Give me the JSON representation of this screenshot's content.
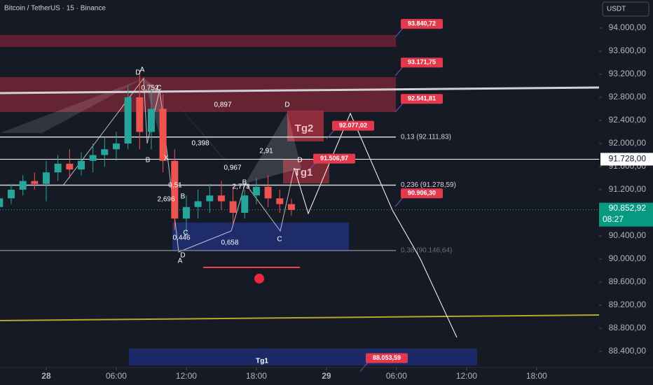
{
  "chart_data": {
    "type": "candlestick",
    "title": "Bitcoin / TetherUS · 15 · Binance",
    "currency": "USDT",
    "up_color": "#26a69a",
    "down_color": "#ef5350",
    "x": [
      -4,
      -3,
      -2,
      -1,
      0,
      1,
      2,
      3,
      4,
      5,
      6,
      7,
      8,
      9,
      10,
      11,
      12,
      13,
      14,
      15,
      16,
      17,
      18,
      19,
      20,
      21
    ],
    "open": [
      90900,
      91050,
      91200,
      91350,
      91300,
      91500,
      91650,
      91550,
      91700,
      91800,
      91900,
      92000,
      92800,
      92200,
      92600,
      91700,
      90700,
      90900,
      91000,
      91100,
      91000,
      90800,
      91100,
      91250,
      91050,
      90950
    ],
    "high": [
      91150,
      91300,
      91450,
      91500,
      91700,
      91800,
      91900,
      91850,
      92000,
      92100,
      92200,
      93000,
      93250,
      92950,
      92850,
      91900,
      91100,
      91200,
      91300,
      91350,
      91250,
      91200,
      91400,
      91450,
      91200,
      91050
    ],
    "low": [
      90800,
      90950,
      91100,
      91200,
      91000,
      91350,
      91400,
      91450,
      91500,
      91600,
      91700,
      91900,
      91900,
      91900,
      91500,
      90500,
      90400,
      90700,
      90800,
      90850,
      90600,
      90700,
      90950,
      90900,
      90800,
      90750
    ],
    "close": [
      91050,
      91200,
      91350,
      91300,
      91500,
      91650,
      91550,
      91700,
      91800,
      91900,
      92000,
      92800,
      92200,
      92600,
      91700,
      90700,
      90900,
      91000,
      91100,
      91000,
      90800,
      91100,
      91250,
      91050,
      90950,
      90850
    ],
    "xlim": [
      -3.96,
      47.35
    ],
    "ylim": [
      87818,
      94485
    ],
    "xticks": [
      {
        "value": 0,
        "label": "28"
      },
      {
        "value": 6,
        "label": "06:00"
      },
      {
        "value": 12,
        "label": "12:00"
      },
      {
        "value": 18,
        "label": "18:00"
      },
      {
        "value": 24,
        "label": "29"
      },
      {
        "value": 30,
        "label": "06:00"
      },
      {
        "value": 36,
        "label": "12:00"
      },
      {
        "value": 42,
        "label": "18:00"
      }
    ],
    "yticks": [
      {
        "value": 94000,
        "label": "94.000,00"
      },
      {
        "value": 93600,
        "label": "93.600,00"
      },
      {
        "value": 93200,
        "label": "93.200,00"
      },
      {
        "value": 92800,
        "label": "92.800,00"
      },
      {
        "value": 92400,
        "label": "92.400,00"
      },
      {
        "value": 92000,
        "label": "92.000,00"
      },
      {
        "value": 91600,
        "label": "91.600,00"
      },
      {
        "value": 91200,
        "label": "91.200,00"
      },
      {
        "value": 90400,
        "label": "90.400,00"
      },
      {
        "value": 90000,
        "label": "90.000,00"
      },
      {
        "value": 89600,
        "label": "89.600,00"
      },
      {
        "value": 89200,
        "label": "89.200,00"
      },
      {
        "value": 88800,
        "label": "88.800,00"
      },
      {
        "value": 88400,
        "label": "88.400,00"
      }
    ],
    "price_tags": [
      {
        "value": 93840.72,
        "label": "93.840,72"
      },
      {
        "value": 93171.75,
        "label": "93.171,75"
      },
      {
        "value": 92541.81,
        "label": "92.541,81"
      },
      {
        "value": 92077.02,
        "label": "92.077,02"
      },
      {
        "value": 91506.97,
        "label": "91.506,97"
      },
      {
        "value": 90906.3,
        "label": "90.906,30"
      },
      {
        "value": 88053.59,
        "label": "88.053,59"
      }
    ],
    "fib_levels": [
      {
        "value": 92111.83,
        "label": "0,13 (92.111,83)"
      },
      {
        "value": 91278.59,
        "label": "0,236 (91.278,59)"
      },
      {
        "value": 90146.64,
        "label": "0,38 (90.146,64)"
      }
    ],
    "level_line": {
      "value": 91728,
      "label": "91.728,00"
    },
    "last_price": {
      "value": 90852.92,
      "label": "90.852,92",
      "countdown": "08:27"
    },
    "pattern_labels": [
      "D",
      "A",
      "0,752",
      "C",
      "0,897",
      "D",
      "0,398",
      "B",
      "X",
      "2,91",
      "0,967",
      "D",
      "0,51",
      "B",
      "2,773",
      "2,696",
      "B",
      "0,446",
      "C",
      "0,658",
      "C",
      "D",
      "A",
      "Tg2",
      "Tg1",
      "Tg1"
    ]
  }
}
